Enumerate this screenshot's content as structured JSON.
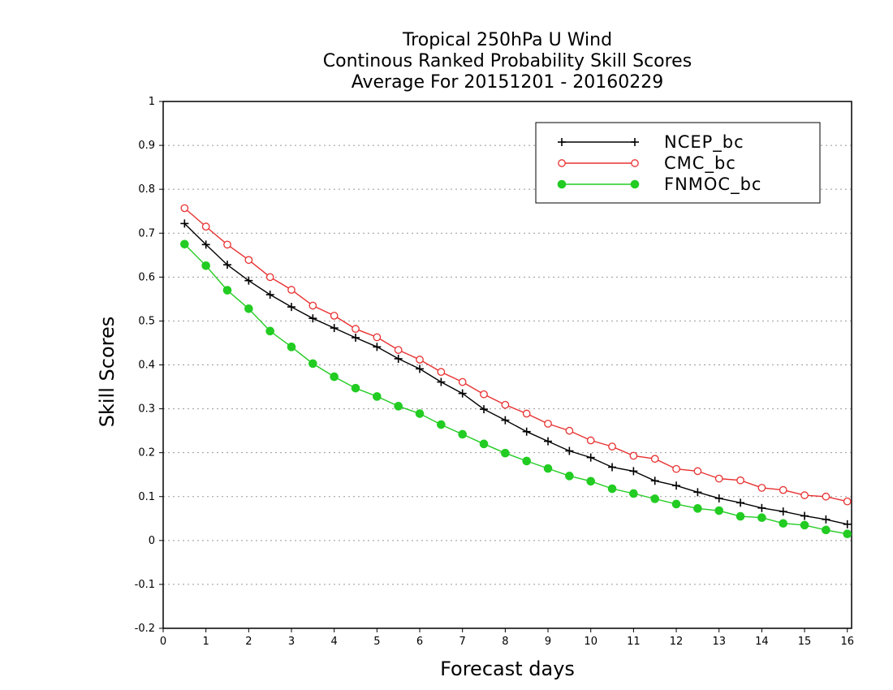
{
  "chart_data": {
    "type": "line",
    "title": [
      "Tropical 250hPa U Wind",
      "Continous Ranked Probability Skill Scores",
      "Average For 20151201 - 20160229"
    ],
    "xlabel": "Forecast days",
    "ylabel": "Skill Scores",
    "xlim": [
      0,
      16.1
    ],
    "ylim": [
      -0.2,
      1
    ],
    "x_ticks": [
      0,
      1,
      2,
      3,
      4,
      5,
      6,
      7,
      8,
      9,
      10,
      11,
      12,
      13,
      14,
      15,
      16
    ],
    "x_tick_labels": [
      "0",
      "1",
      "2",
      "3",
      "4",
      "5",
      "6",
      "7",
      "8",
      "9",
      "10",
      "11",
      "12",
      "13",
      "14",
      "15",
      "16"
    ],
    "y_ticks": [
      -0.2,
      -0.1,
      0,
      0.1,
      0.2,
      0.3,
      0.4,
      0.5,
      0.6,
      0.7,
      0.8,
      0.9,
      1
    ],
    "y_tick_labels": [
      "-0.2",
      "-0.1",
      "0",
      "0.1",
      "0.2",
      "0.3",
      "0.4",
      "0.5",
      "0.6",
      "0.7",
      "0.8",
      "0.9",
      "1"
    ],
    "grid": "horizontal dotted",
    "legend_position": "top-right",
    "x": [
      0.5,
      1,
      1.5,
      2,
      2.5,
      3,
      3.5,
      4,
      4.5,
      5,
      5.5,
      6,
      6.5,
      7,
      7.5,
      8,
      8.5,
      9,
      9.5,
      10,
      10.5,
      11,
      11.5,
      12,
      12.5,
      13,
      13.5,
      14,
      14.5,
      15,
      15.5,
      16
    ],
    "series": [
      {
        "name": "NCEP_bc",
        "color": "#000000",
        "marker": "plus",
        "values": [
          0.722,
          0.674,
          0.628,
          0.592,
          0.56,
          0.532,
          0.506,
          0.484,
          0.462,
          0.441,
          0.414,
          0.391,
          0.361,
          0.335,
          0.299,
          0.274,
          0.248,
          0.226,
          0.204,
          0.189,
          0.167,
          0.158,
          0.136,
          0.125,
          0.11,
          0.096,
          0.086,
          0.074,
          0.066,
          0.056,
          0.048,
          0.037
        ]
      },
      {
        "name": "CMC_bc",
        "color": "#e83030",
        "marker": "open-circle",
        "values": [
          0.757,
          0.715,
          0.674,
          0.639,
          0.6,
          0.571,
          0.535,
          0.512,
          0.482,
          0.463,
          0.434,
          0.412,
          0.384,
          0.361,
          0.333,
          0.309,
          0.289,
          0.266,
          0.25,
          0.228,
          0.214,
          0.193,
          0.186,
          0.163,
          0.158,
          0.141,
          0.137,
          0.12,
          0.115,
          0.103,
          0.1,
          0.089
        ]
      },
      {
        "name": "FNMOC_bc",
        "color": "#22cc22",
        "marker": "filled-circle",
        "values": [
          0.675,
          0.626,
          0.57,
          0.528,
          0.477,
          0.441,
          0.403,
          0.373,
          0.347,
          0.328,
          0.306,
          0.289,
          0.264,
          0.242,
          0.22,
          0.199,
          0.181,
          0.164,
          0.147,
          0.135,
          0.118,
          0.107,
          0.095,
          0.083,
          0.073,
          0.068,
          0.055,
          0.052,
          0.039,
          0.035,
          0.024,
          0.015
        ]
      }
    ]
  }
}
